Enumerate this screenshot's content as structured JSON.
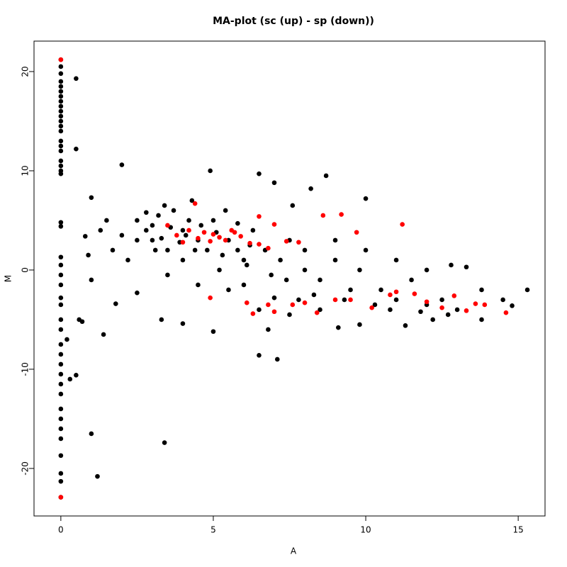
{
  "chart_data": {
    "type": "scatter",
    "title": "MA-plot (sc (up) - sp (down))",
    "x_label": "A",
    "y_label": "M",
    "xlim": [
      -0.88,
      15.88
    ],
    "ylim": [
      -24.79,
      23.07
    ],
    "xticks": [
      0,
      5,
      10,
      15
    ],
    "yticks": [
      -20,
      -10,
      0,
      10,
      20
    ],
    "series": [
      {
        "color": "#000000",
        "x": [
          0,
          0,
          0,
          0,
          0,
          0,
          0,
          0,
          0,
          0,
          0,
          0,
          0,
          0,
          0,
          0,
          0,
          0,
          0,
          0,
          0,
          0,
          0,
          0,
          0,
          0,
          0,
          0,
          0,
          0,
          0,
          0,
          0,
          0,
          0,
          0,
          0,
          0,
          0,
          0,
          0,
          0,
          0,
          0,
          0,
          0.5,
          0.5,
          0.2,
          0.3,
          0.5,
          0.6,
          0.7,
          1.0,
          1.2,
          1.4,
          3.4,
          2,
          1,
          0.9,
          0.8,
          1.3,
          1.5,
          1.7,
          2,
          2.2,
          2.5,
          2.8,
          3,
          3.2,
          3.5,
          3.7,
          4,
          4,
          4.3,
          4.5,
          4.8,
          4.9,
          5,
          5.2,
          5.5,
          5.8,
          6,
          6.3,
          6.5,
          6.5,
          7.1,
          6.8,
          7,
          7.5,
          8,
          8.2,
          8.5,
          8.7,
          9,
          9.5,
          9.8,
          10,
          10.5,
          11,
          11.5,
          12,
          12.5,
          13,
          13.3,
          13.8,
          14.5,
          15.3,
          14.8,
          13.8,
          12.2,
          11.3,
          9.8,
          9.1,
          8.5,
          7.5,
          6.5,
          5,
          4,
          3.3,
          2.5,
          1.8,
          1,
          3.5,
          4.5,
          5.5,
          6,
          7,
          7.8,
          8,
          9,
          10,
          11,
          12,
          12.8,
          2.5,
          3,
          3.3,
          3.6,
          3.9,
          4.2,
          4.6,
          5.1,
          5.4,
          5.8,
          6.2,
          6.7,
          7.2,
          7.6,
          2.8,
          3.1,
          3.4,
          4.1,
          4.4,
          5.3,
          6.1,
          6.9,
          7.4,
          8.3,
          9.3,
          10.3,
          10.8,
          11.8,
          12.7
        ],
        "values": [
          21.2,
          20.5,
          19.8,
          19,
          18.5,
          18,
          17.5,
          17,
          16.5,
          16,
          15.5,
          15,
          14.5,
          14,
          13,
          12.5,
          12,
          11,
          10.5,
          10,
          9.7,
          4.8,
          4.4,
          1.3,
          0.5,
          -0.5,
          -1.5,
          -2.8,
          -3.5,
          -5,
          -6,
          -7.5,
          -8.5,
          -9.5,
          -10.5,
          -11.5,
          -12.5,
          -14,
          -15,
          -16,
          -17,
          -18.7,
          -20.5,
          -21.3,
          -22.9,
          19.3,
          12.2,
          -7,
          -11,
          -10.6,
          -5,
          -5.2,
          -16.5,
          -20.8,
          -6.5,
          -17.4,
          10.6,
          7.3,
          1.5,
          3.4,
          4,
          5,
          2,
          3.5,
          1,
          5,
          4,
          3,
          5.5,
          2,
          6,
          4,
          1,
          7,
          3,
          2,
          10,
          5,
          0,
          3,
          2,
          1,
          4,
          9.7,
          -8.6,
          -9,
          -6,
          8.8,
          3,
          2,
          8.2,
          -1,
          9.5,
          1,
          -2,
          0,
          7.2,
          -2,
          -3,
          -1,
          -3.5,
          -3,
          -4,
          0.3,
          -2,
          -3,
          -2,
          -3.6,
          -5,
          -5,
          -5.6,
          -5.5,
          -5.8,
          -4,
          -4.5,
          -4,
          -6.2,
          -5.4,
          -5,
          -2.3,
          -3.4,
          -1,
          -0.5,
          -1.5,
          -2,
          -1.5,
          -2.8,
          -3,
          0,
          3,
          2,
          1,
          0,
          0.5,
          3,
          4.5,
          3.2,
          4.3,
          2.8,
          5,
          4.5,
          3.8,
          6,
          4.7,
          2.5,
          2,
          1,
          6.5,
          5.8,
          2,
          6.5,
          3.5,
          2,
          1.5,
          0.5,
          -0.5,
          -1,
          -2.5,
          -3,
          -3.5,
          -4,
          -4.2,
          -4.5
        ]
      },
      {
        "color": "#ff0000",
        "x": [
          0,
          0,
          3.5,
          3.8,
          4,
          4.2,
          4.4,
          4.5,
          4.7,
          4.9,
          5,
          5.2,
          5.4,
          5.6,
          5.9,
          6.2,
          6.5,
          6.8,
          7,
          7.4,
          7.8,
          8.6,
          9.2,
          9.7,
          11.2,
          4.9,
          6.1,
          6.3,
          6.8,
          7,
          7.6,
          8.4,
          9,
          9.5,
          10.2,
          10.8,
          11,
          11.6,
          12,
          12.5,
          12.9,
          13.3,
          13.6,
          13.9,
          14.6,
          8,
          5.7,
          6.5
        ],
        "values": [
          21.2,
          -22.9,
          4.5,
          3.5,
          2.8,
          4,
          6.7,
          3.2,
          3.8,
          2.9,
          3.6,
          3.3,
          3,
          4,
          3.4,
          2.7,
          2.6,
          2.2,
          4.6,
          2.9,
          2.8,
          5.5,
          5.6,
          3.8,
          4.6,
          -2.8,
          -3.3,
          -4.4,
          -3.5,
          -4.2,
          -3.5,
          -4.3,
          -3,
          -3,
          -3.8,
          -2.5,
          -2.2,
          -2.4,
          -3.2,
          -3.8,
          -2.6,
          -4.1,
          -3.4,
          -3.5,
          -4.3,
          -3.3,
          3.8,
          5.4
        ]
      }
    ]
  }
}
